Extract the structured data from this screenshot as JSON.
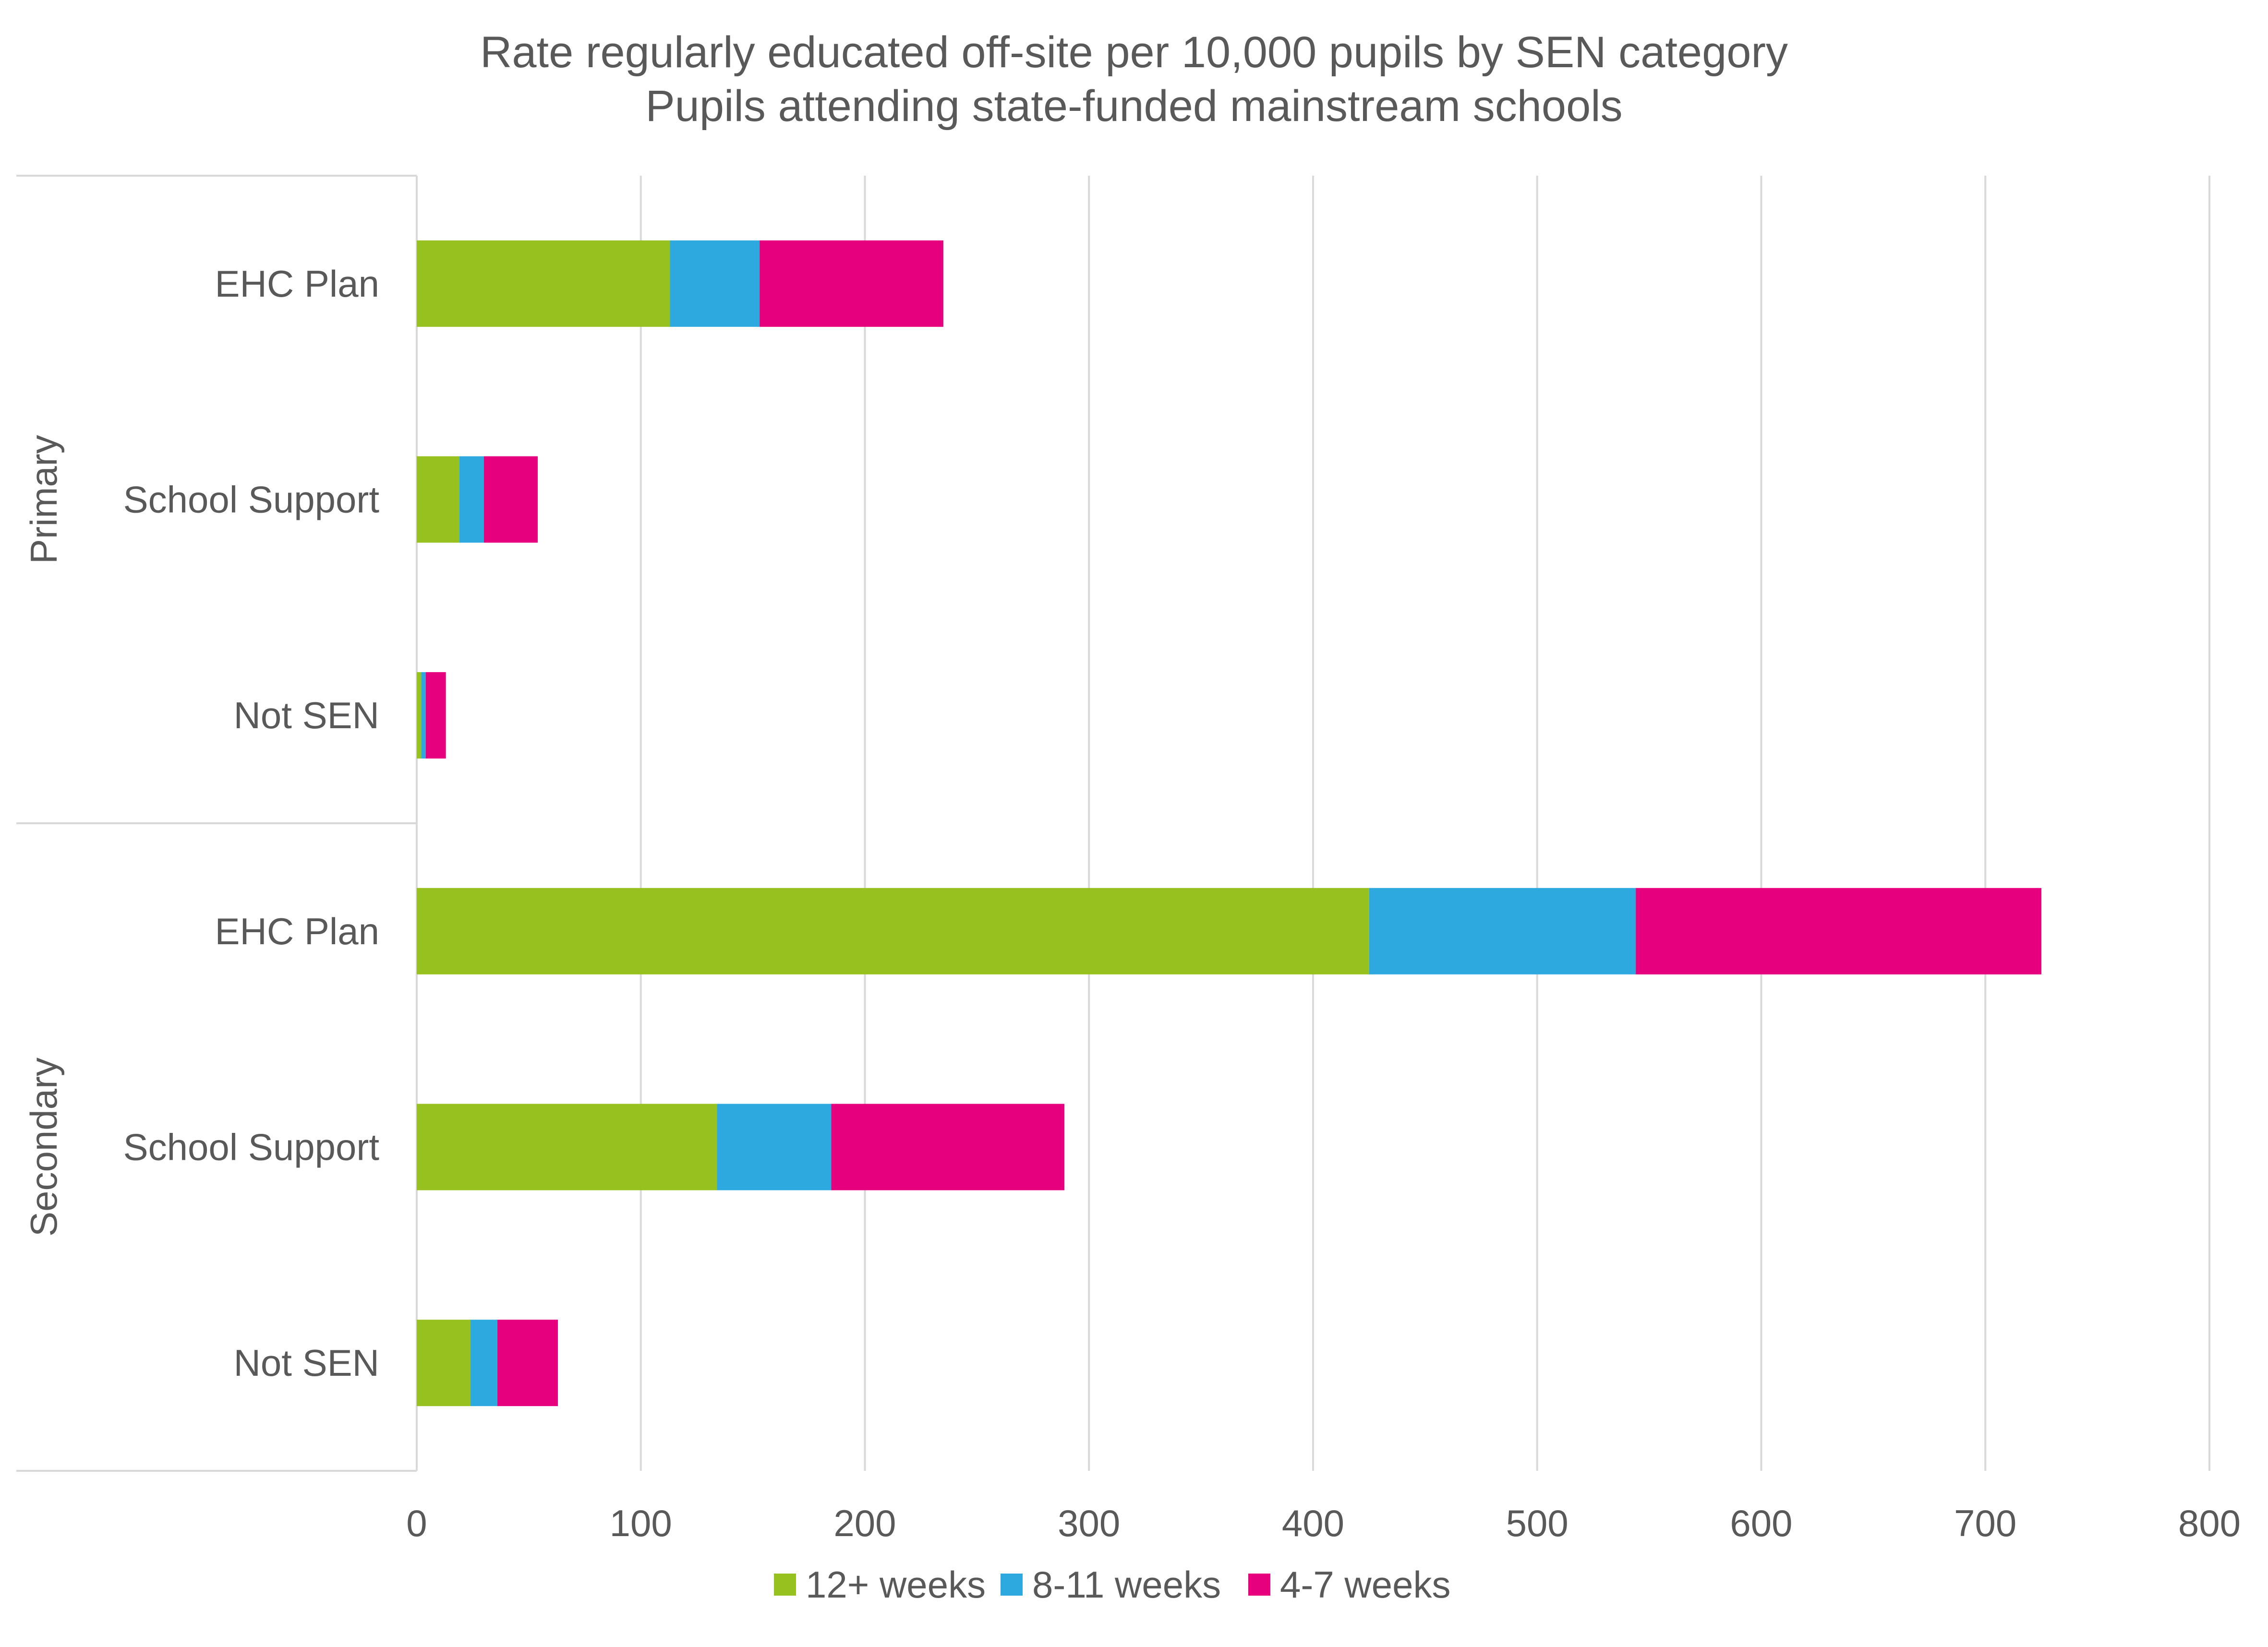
{
  "chart_data": {
    "type": "bar",
    "orientation": "horizontal",
    "stacked": true,
    "title": "Rate regularly educated off-site per 10,000 pupils by SEN category",
    "subtitle": "Pupils attending state-funded mainstream schools",
    "groups": [
      {
        "name": "Primary",
        "categories": [
          "EHC Plan",
          "School Support",
          "Not SEN"
        ]
      },
      {
        "name": "Secondary",
        "categories": [
          "EHC Plan",
          "School Support",
          "Not SEN"
        ]
      }
    ],
    "series": [
      {
        "name": "12+ weeks",
        "color": "#97C11F",
        "values": [
          113,
          19,
          2,
          425,
          134,
          24
        ]
      },
      {
        "name": "8-11 weeks",
        "color": "#2EA9E0",
        "values": [
          40,
          11,
          2,
          119,
          51,
          12
        ]
      },
      {
        "name": "4-7 weeks",
        "color": "#E6007E",
        "values": [
          82,
          24,
          9,
          181,
          104,
          27
        ]
      }
    ],
    "xlim": [
      0,
      800
    ],
    "xticks": [
      "0",
      "100",
      "200",
      "300",
      "400",
      "500",
      "600",
      "700",
      "800"
    ],
    "grid": true,
    "legend_position": "bottom"
  }
}
